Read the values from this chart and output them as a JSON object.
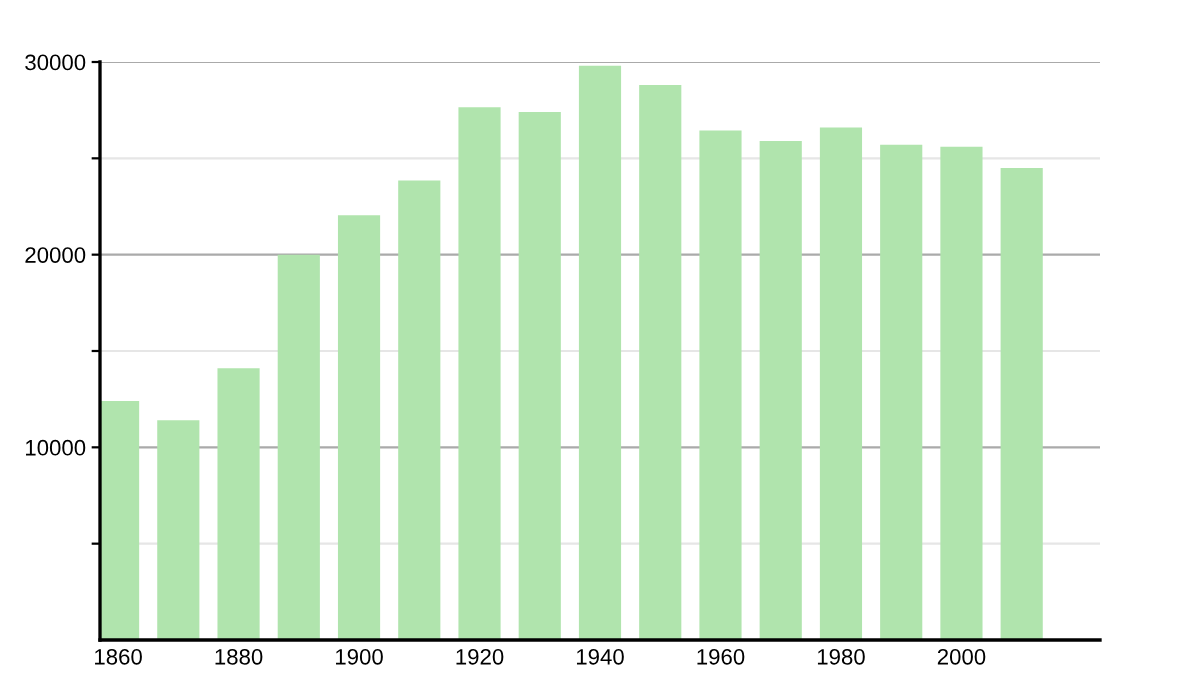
{
  "chart_data": {
    "type": "bar",
    "x": [
      1860,
      1870,
      1880,
      1890,
      1900,
      1910,
      1920,
      1930,
      1940,
      1950,
      1960,
      1970,
      1980,
      1990,
      2000,
      2010
    ],
    "values": [
      12400,
      11400,
      14100,
      20000,
      22050,
      23850,
      27650,
      27400,
      29800,
      28800,
      26450,
      25900,
      26600,
      25700,
      25600,
      24500
    ],
    "color": "#b0e4ad",
    "xlim": [
      1857,
      2023
    ],
    "xticks": [
      1860,
      1880,
      1900,
      1920,
      1940,
      1960,
      1980,
      2000
    ],
    "ylim": [
      0,
      30000
    ],
    "yticks": [
      {
        "value": 5000,
        "label": null
      },
      10000,
      {
        "value": 15000,
        "label": null
      },
      20000,
      {
        "value": 25000,
        "label": null
      },
      30000
    ],
    "grid": "y"
  }
}
